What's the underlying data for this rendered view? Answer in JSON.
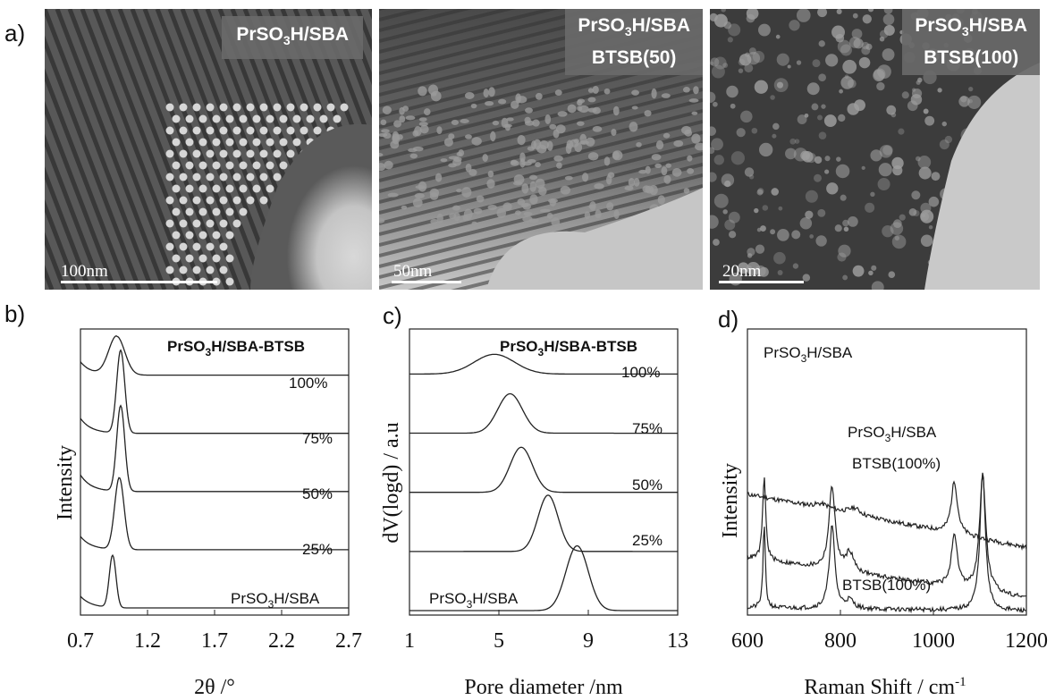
{
  "panel_labels": {
    "a": "a)",
    "b": "b)",
    "c": "c)",
    "d": "d)"
  },
  "tem": [
    {
      "label_line1": "PrSO",
      "label_sub": "3",
      "label_rest": "H/SBA",
      "label_line2": "",
      "scale": "100nm"
    },
    {
      "label_line1": "PrSO",
      "label_sub": "3",
      "label_rest": "H/SBA",
      "label_line2": "BTSB(50)",
      "scale": "50nm"
    },
    {
      "label_line1": "PrSO",
      "label_sub": "3",
      "label_rest": "H/SBA",
      "label_line2": "BTSB(100)",
      "scale": "20nm"
    }
  ],
  "colors": {
    "line": "#222222",
    "tem_dark": "#3a3a3a",
    "tem_light": "#cfcfcf",
    "label_bg": "#6a6a6a"
  },
  "chart_data": [
    {
      "type": "line",
      "panel": "b",
      "title_parts": [
        "PrSO",
        "3",
        "H/SBA-BTSB"
      ],
      "xlabel": "2θ /°",
      "ylabel": "Intensity",
      "xlim": [
        0.7,
        2.7
      ],
      "xticks": [
        "0.7",
        "1.2",
        "1.7",
        "2.2",
        "2.7"
      ],
      "series": [
        {
          "name": "100%",
          "peak": 0.97,
          "width": 0.06,
          "height": 0.7,
          "baseline": 4.2,
          "start": 4.6
        },
        {
          "name": "75%",
          "peak": 1.0,
          "width": 0.03,
          "height": 1.5,
          "baseline": 3.15,
          "start": 3.6
        },
        {
          "name": "50%",
          "peak": 1.0,
          "width": 0.03,
          "height": 1.55,
          "baseline": 2.1,
          "start": 2.6
        },
        {
          "name": "25%",
          "peak": 0.99,
          "width": 0.035,
          "height": 1.3,
          "baseline": 1.05,
          "start": 1.45
        },
        {
          "name_parts": [
            "PrSO",
            "3",
            "H/SBA"
          ],
          "peak": 0.94,
          "width": 0.025,
          "height": 0.95,
          "baseline": 0.0,
          "start": 0.35
        }
      ]
    },
    {
      "type": "line",
      "panel": "c",
      "title_parts": [
        "PrSO",
        "3",
        "H/SBA-BTSB"
      ],
      "xlabel": "Pore diameter /nm",
      "ylabel": "dV(logd) / a.u",
      "xlim": [
        1,
        13
      ],
      "xticks": [
        "1",
        "5",
        "9",
        "13"
      ],
      "series": [
        {
          "name": "100%",
          "peak": 4.8,
          "width": 0.9,
          "height": 0.35,
          "baseline": 4.2
        },
        {
          "name": "75%",
          "peak": 5.5,
          "width": 0.55,
          "height": 0.7,
          "baseline": 3.15
        },
        {
          "name": "50%",
          "peak": 6.0,
          "width": 0.5,
          "height": 0.8,
          "baseline": 2.1
        },
        {
          "name": "25%",
          "peak": 7.2,
          "width": 0.45,
          "height": 1.0,
          "baseline": 1.05
        },
        {
          "name_parts": [
            "PrSO",
            "3",
            "H/SBA"
          ],
          "peak": 8.5,
          "width": 0.5,
          "height": 1.15,
          "baseline": 0.0
        }
      ]
    },
    {
      "type": "line",
      "panel": "d",
      "xlabel": "Raman Shift / cm-1",
      "xlabel_parts": [
        "Raman Shift / cm",
        "-1"
      ],
      "ylabel": "Intensity",
      "xlim": [
        600,
        1200
      ],
      "xticks": [
        "600",
        "800",
        "1000",
        "1200"
      ],
      "series": [
        {
          "name_parts": [
            "PrSO",
            "3",
            "H/SBA"
          ],
          "baseline": 2.05,
          "slope": -0.0016,
          "peaks": [
            [
              830,
              15,
              0.12
            ],
            [
              1045,
              8,
              0.95
            ],
            [
              760,
              20,
              0.08
            ]
          ]
        },
        {
          "name_parts": [
            "PrSO",
            "3",
            "H/SBA"
          ],
          "name_line2": "BTSB(100%)",
          "baseline": 0.9,
          "slope": -0.0012,
          "peaks": [
            [
              636,
              4,
              1.5
            ],
            [
              782,
              8,
              1.5
            ],
            [
              820,
              10,
              0.35
            ],
            [
              1045,
              8,
              0.9
            ],
            [
              1106,
              8,
              2.1
            ]
          ]
        },
        {
          "name": "BTSB(100%)",
          "baseline": 0.0,
          "slope": -0.0001,
          "peaks": [
            [
              636,
              3,
              1.5
            ],
            [
              782,
              7,
              1.5
            ],
            [
              820,
              10,
              0.15
            ],
            [
              1106,
              7,
              2.5
            ]
          ]
        }
      ]
    }
  ]
}
